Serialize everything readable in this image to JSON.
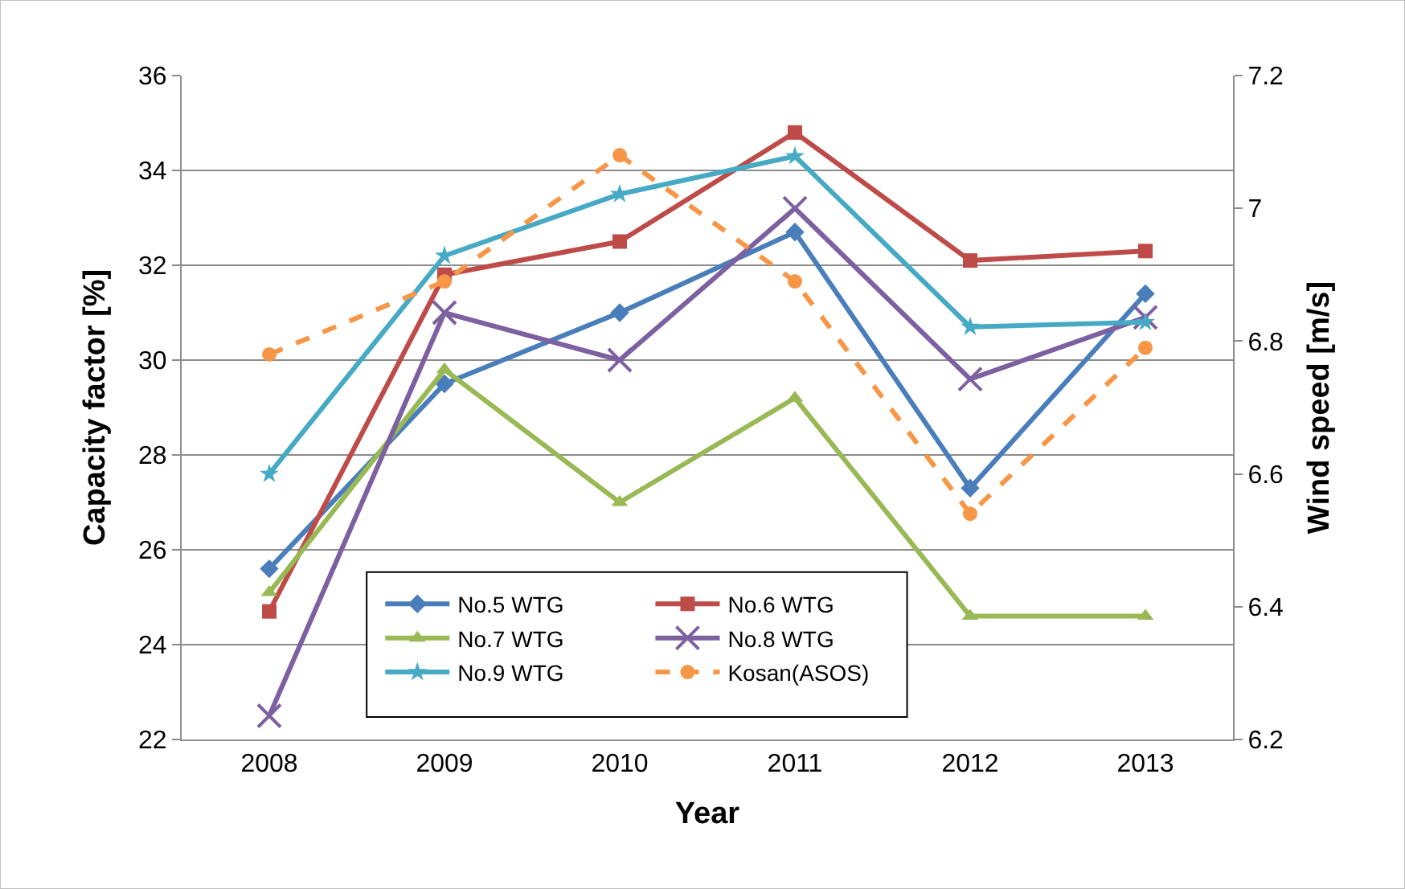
{
  "chart_data": {
    "type": "line",
    "xlabel": "Year",
    "ylabel": "Capacity factor [%]",
    "y2label": "Wind speed [m/s]",
    "categories": [
      "2008",
      "2009",
      "2010",
      "2011",
      "2012",
      "2013"
    ],
    "series": [
      {
        "name": "No.5 WTG",
        "color": "#4a7ebb",
        "marker": "diamond",
        "values": [
          25.6,
          29.5,
          31.0,
          32.7,
          27.3,
          31.4
        ]
      },
      {
        "name": "No.6 WTG",
        "color": "#be4b48",
        "marker": "square",
        "values": [
          24.7,
          31.8,
          32.5,
          34.8,
          32.1,
          32.3
        ]
      },
      {
        "name": "No.7 WTG",
        "color": "#98b954",
        "marker": "triangle",
        "values": [
          25.1,
          29.8,
          27.0,
          29.2,
          24.6,
          24.6
        ]
      },
      {
        "name": "No.8 WTG",
        "color": "#7d60a0",
        "marker": "cross",
        "values": [
          22.5,
          31.0,
          30.0,
          33.2,
          29.6,
          30.9
        ]
      },
      {
        "name": "No.9 WTG",
        "color": "#46aac5",
        "marker": "star",
        "values": [
          27.6,
          32.2,
          33.5,
          34.3,
          30.7,
          30.8
        ]
      },
      {
        "name": "Kosan(ASOS)",
        "color": "#f79646",
        "marker": "circle",
        "line_style": "dashed",
        "axis": "y2",
        "values": [
          6.78,
          6.89,
          7.08,
          6.89,
          6.54,
          6.79
        ]
      }
    ],
    "ylim": [
      22,
      36
    ],
    "yticks": [
      22,
      24,
      26,
      28,
      30,
      32,
      34,
      36
    ],
    "y2lim": [
      6.2,
      7.2
    ],
    "y2ticks": [
      {
        "value": 6.2,
        "label": "6.2"
      },
      {
        "value": 6.4,
        "label": "6.4"
      },
      {
        "value": 6.6,
        "label": "6.6"
      },
      {
        "value": 6.8,
        "label": "6.8"
      },
      {
        "value": 7.0,
        "label": "7"
      },
      {
        "value": 7.2,
        "label": "7.2"
      }
    ],
    "grid": "y",
    "legend": "bottom"
  }
}
